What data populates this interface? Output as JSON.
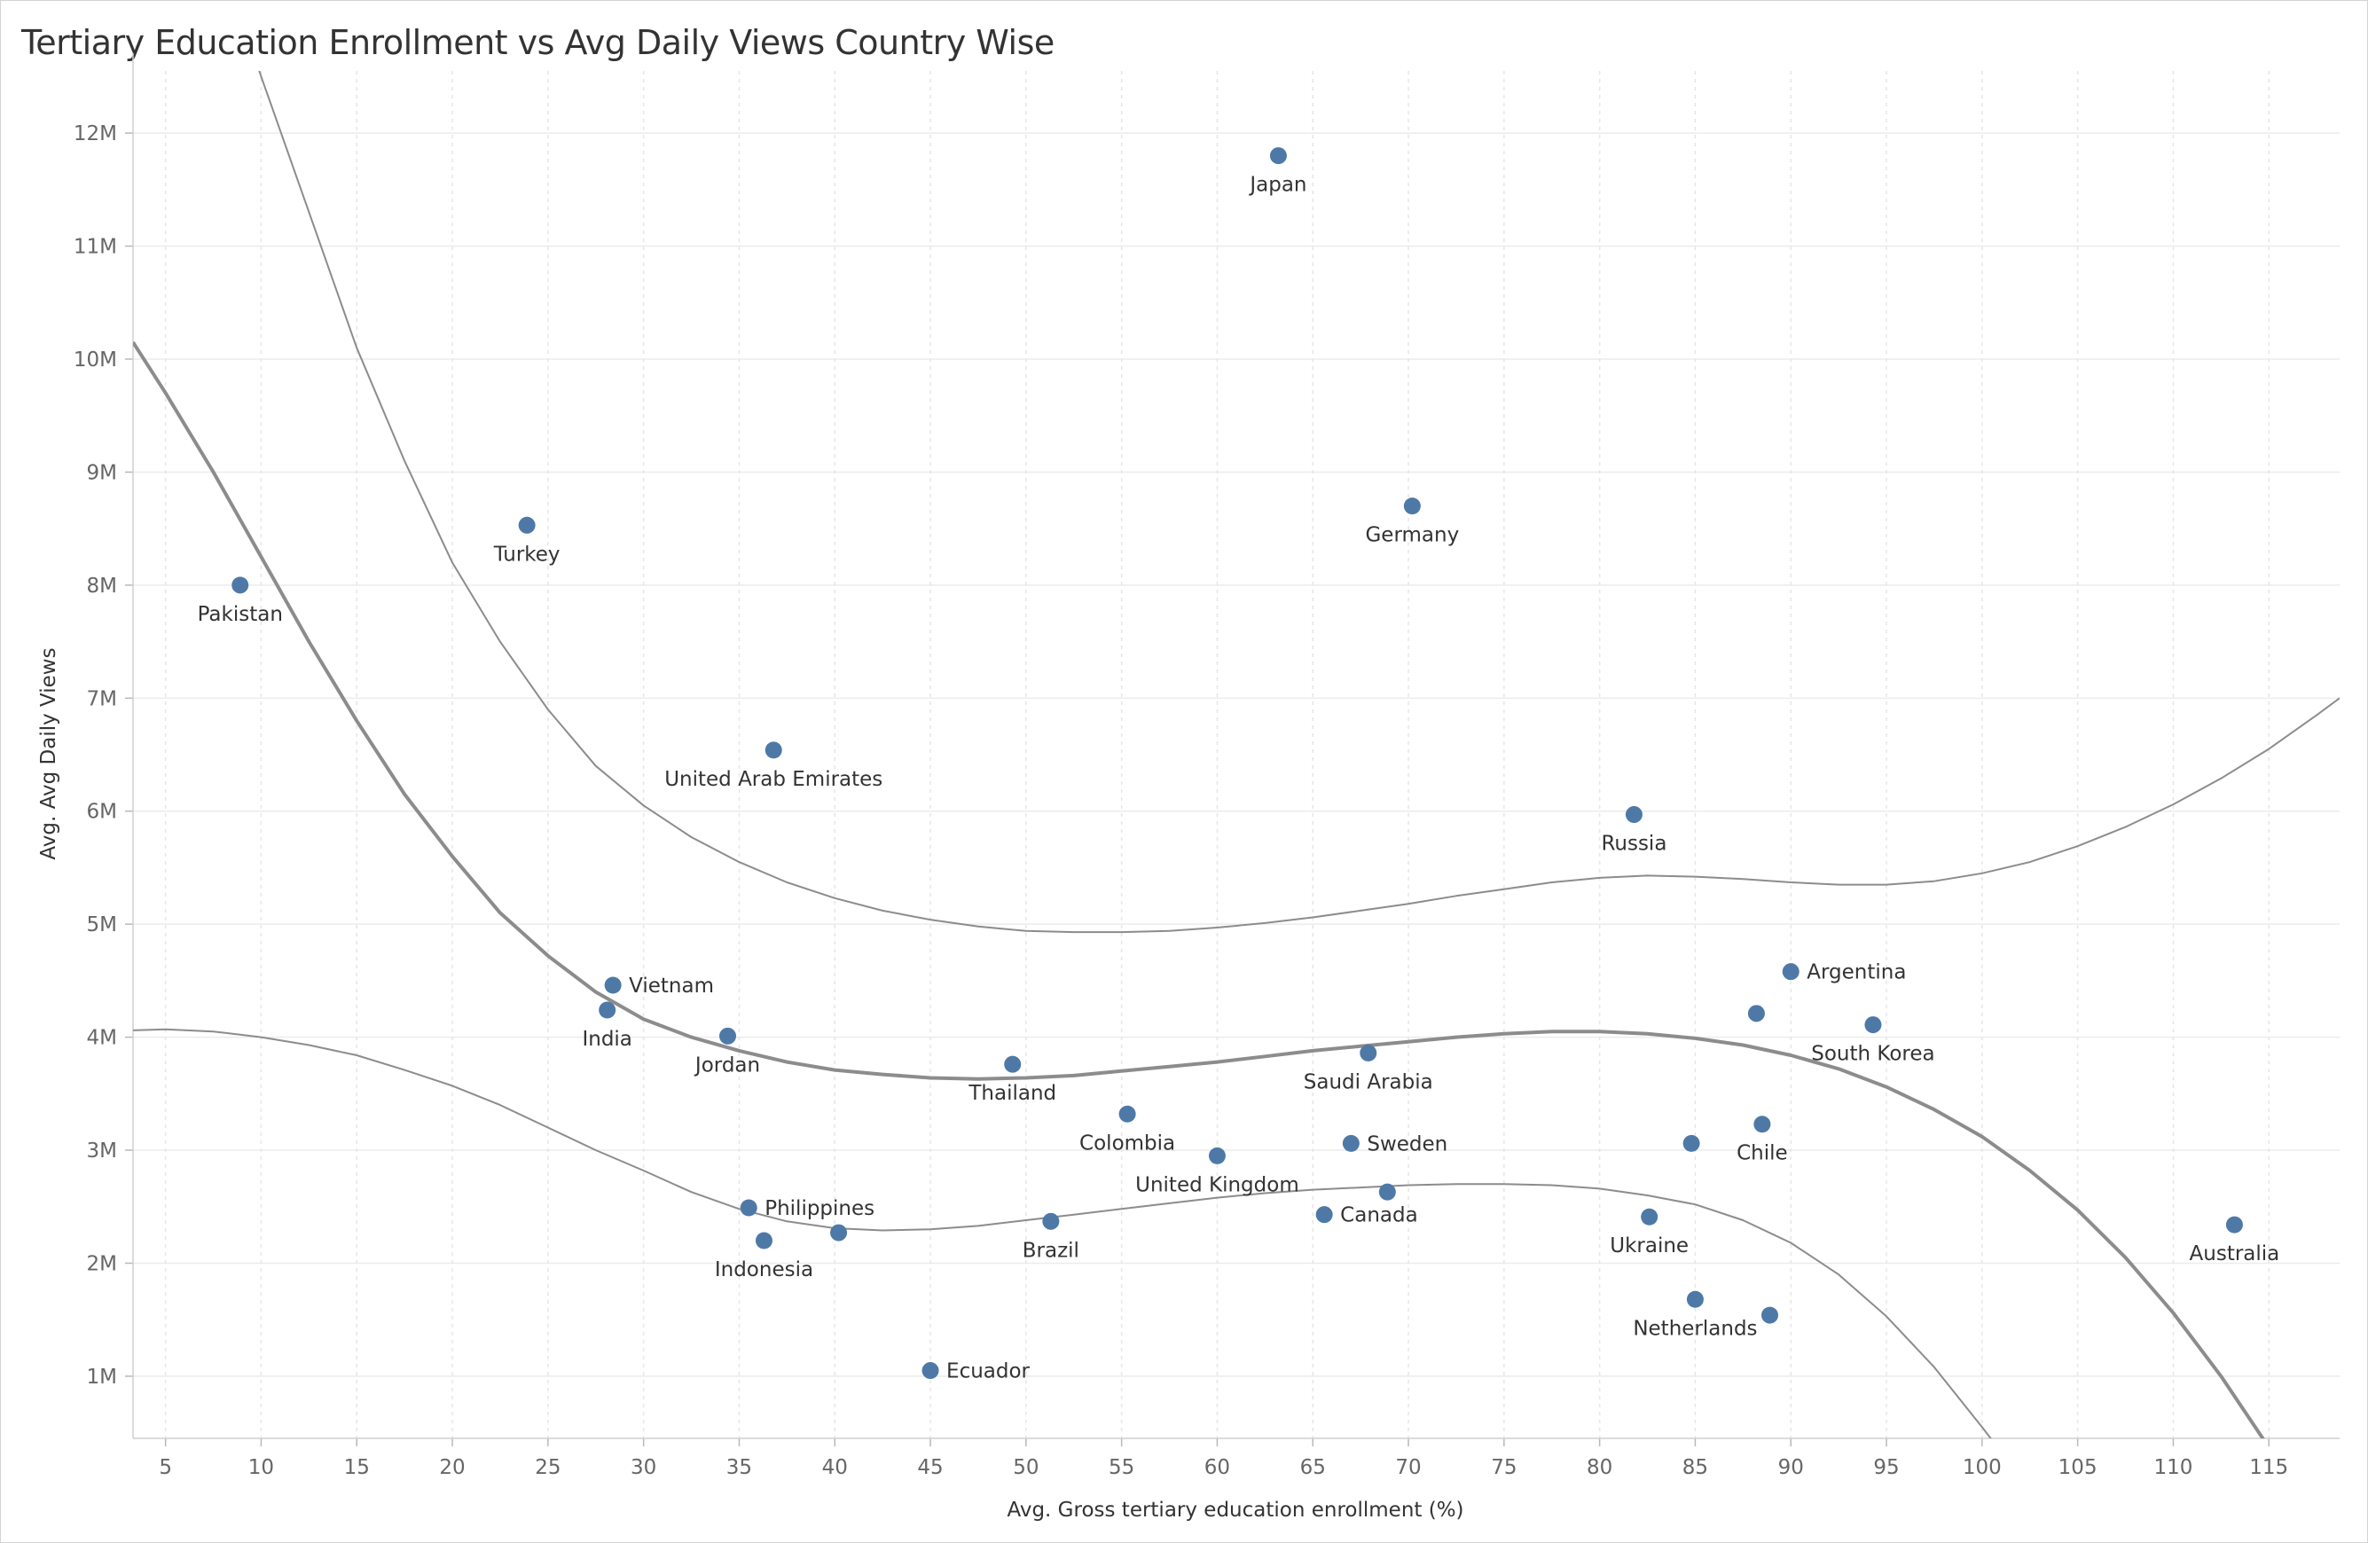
{
  "chart_data": {
    "type": "scatter",
    "title": "Tertiary Education Enrollment vs Avg Daily Views Country Wise",
    "xlabel": "Avg. Gross tertiary education enrollment (%)",
    "ylabel": "Avg. Avg Daily Views",
    "xlim": [
      3.3,
      118.7
    ],
    "ylim": [
      0.45,
      12.55
    ],
    "x_ticks": [
      5,
      10,
      15,
      20,
      25,
      30,
      35,
      40,
      45,
      50,
      55,
      60,
      65,
      70,
      75,
      80,
      85,
      90,
      95,
      100,
      105,
      110,
      115
    ],
    "y_ticks": [
      1,
      2,
      3,
      4,
      5,
      6,
      7,
      8,
      9,
      10,
      11,
      12
    ],
    "y_tick_labels": [
      "1M",
      "2M",
      "3M",
      "4M",
      "5M",
      "6M",
      "7M",
      "8M",
      "9M",
      "10M",
      "11M",
      "12M"
    ],
    "grid": true,
    "point_color": "#4e79a7",
    "curve_color": "#8c8c8c",
    "points": [
      {
        "label": "Japan",
        "x": 63.2,
        "y": 11.8,
        "label_pos": "below"
      },
      {
        "label": "Germany",
        "x": 70.2,
        "y": 8.7,
        "label_pos": "below"
      },
      {
        "label": "Turkey",
        "x": 23.9,
        "y": 8.53,
        "label_pos": "below"
      },
      {
        "label": "Pakistan",
        "x": 8.9,
        "y": 8.0,
        "label_pos": "below"
      },
      {
        "label": "United Arab Emirates",
        "x": 36.8,
        "y": 6.54,
        "label_pos": "below"
      },
      {
        "label": "Russia",
        "x": 81.8,
        "y": 5.97,
        "label_pos": "below"
      },
      {
        "label": "Argentina",
        "x": 90.0,
        "y": 4.58,
        "label_pos": "right"
      },
      {
        "label": "Vietnam",
        "x": 28.4,
        "y": 4.46,
        "label_pos": "right"
      },
      {
        "label": "India",
        "x": 28.1,
        "y": 4.24,
        "label_pos": "below"
      },
      {
        "label": "",
        "x": 88.2,
        "y": 4.21,
        "label_pos": "none"
      },
      {
        "label": "South Korea",
        "x": 94.3,
        "y": 4.11,
        "label_pos": "below"
      },
      {
        "label": "Jordan",
        "x": 34.4,
        "y": 4.01,
        "label_pos": "below"
      },
      {
        "label": "Saudi Arabia",
        "x": 67.9,
        "y": 3.86,
        "label_pos": "below"
      },
      {
        "label": "Thailand",
        "x": 49.3,
        "y": 3.76,
        "label_pos": "below"
      },
      {
        "label": "Colombia",
        "x": 55.3,
        "y": 3.32,
        "label_pos": "below"
      },
      {
        "label": "Chile",
        "x": 88.5,
        "y": 3.23,
        "label_pos": "below"
      },
      {
        "label": "Sweden",
        "x": 67.0,
        "y": 3.06,
        "label_pos": "right"
      },
      {
        "label": "",
        "x": 84.8,
        "y": 3.06,
        "label_pos": "none"
      },
      {
        "label": "United Kingdom",
        "x": 60.0,
        "y": 2.95,
        "label_pos": "below"
      },
      {
        "label": "",
        "x": 68.9,
        "y": 2.63,
        "label_pos": "none"
      },
      {
        "label": "Philippines",
        "x": 35.5,
        "y": 2.49,
        "label_pos": "right"
      },
      {
        "label": "Canada",
        "x": 65.6,
        "y": 2.43,
        "label_pos": "right"
      },
      {
        "label": "Ukraine",
        "x": 82.6,
        "y": 2.41,
        "label_pos": "below"
      },
      {
        "label": "Brazil",
        "x": 51.3,
        "y": 2.37,
        "label_pos": "below"
      },
      {
        "label": "Australia",
        "x": 113.2,
        "y": 2.34,
        "label_pos": "below"
      },
      {
        "label": "",
        "x": 40.2,
        "y": 2.27,
        "label_pos": "none"
      },
      {
        "label": "Indonesia",
        "x": 36.3,
        "y": 2.2,
        "label_pos": "below"
      },
      {
        "label": "Netherlands",
        "x": 85.0,
        "y": 1.68,
        "label_pos": "below"
      },
      {
        "label": "",
        "x": 88.9,
        "y": 1.54,
        "label_pos": "none"
      },
      {
        "label": "Ecuador",
        "x": 45.0,
        "y": 1.05,
        "label_pos": "right"
      }
    ],
    "trend_lines": [
      {
        "name": "",
        "stroke": 4,
        "points": [
          [
            3.3,
            10.15
          ],
          [
            5,
            9.7
          ],
          [
            7.5,
            9.0
          ],
          [
            10,
            8.25
          ],
          [
            12.5,
            7.5
          ],
          [
            15,
            6.8
          ],
          [
            17.5,
            6.15
          ],
          [
            20,
            5.6
          ],
          [
            22.5,
            5.1
          ],
          [
            25,
            4.72
          ],
          [
            27.5,
            4.4
          ],
          [
            30,
            4.16
          ],
          [
            32.5,
            4.0
          ],
          [
            35,
            3.88
          ],
          [
            37.5,
            3.78
          ],
          [
            40,
            3.71
          ],
          [
            42.5,
            3.67
          ],
          [
            45,
            3.64
          ],
          [
            47.5,
            3.63
          ],
          [
            50,
            3.64
          ],
          [
            52.5,
            3.66
          ],
          [
            55,
            3.7
          ],
          [
            57.5,
            3.74
          ],
          [
            60,
            3.78
          ],
          [
            62.5,
            3.83
          ],
          [
            65,
            3.88
          ],
          [
            67.5,
            3.92
          ],
          [
            70,
            3.96
          ],
          [
            72.5,
            4.0
          ],
          [
            75,
            4.03
          ],
          [
            77.5,
            4.05
          ],
          [
            80,
            4.05
          ],
          [
            82.5,
            4.03
          ],
          [
            85,
            3.99
          ],
          [
            87.5,
            3.93
          ],
          [
            90,
            3.84
          ],
          [
            92.5,
            3.72
          ],
          [
            95,
            3.56
          ],
          [
            97.5,
            3.36
          ],
          [
            100,
            3.12
          ],
          [
            102.5,
            2.82
          ],
          [
            105,
            2.47
          ],
          [
            107.5,
            2.05
          ],
          [
            110,
            1.56
          ],
          [
            112.5,
            1.0
          ],
          [
            115,
            0.37
          ],
          [
            116.5,
            -0.05
          ]
        ]
      },
      {
        "name": "",
        "stroke": 2,
        "points": [
          [
            9,
            13.0
          ],
          [
            10,
            12.5
          ],
          [
            12.5,
            11.3
          ],
          [
            15,
            10.1
          ],
          [
            17.5,
            9.1
          ],
          [
            20,
            8.2
          ],
          [
            22.5,
            7.5
          ],
          [
            25,
            6.9
          ],
          [
            27.5,
            6.4
          ],
          [
            30,
            6.05
          ],
          [
            32.5,
            5.77
          ],
          [
            35,
            5.55
          ],
          [
            37.5,
            5.37
          ],
          [
            40,
            5.23
          ],
          [
            42.5,
            5.12
          ],
          [
            45,
            5.04
          ],
          [
            47.5,
            4.98
          ],
          [
            50,
            4.94
          ],
          [
            52.5,
            4.93
          ],
          [
            55,
            4.93
          ],
          [
            57.5,
            4.94
          ],
          [
            60,
            4.97
          ],
          [
            62.5,
            5.01
          ],
          [
            65,
            5.06
          ],
          [
            67.5,
            5.12
          ],
          [
            70,
            5.18
          ],
          [
            72.5,
            5.25
          ],
          [
            75,
            5.31
          ],
          [
            77.5,
            5.37
          ],
          [
            80,
            5.41
          ],
          [
            82.5,
            5.43
          ],
          [
            85,
            5.42
          ],
          [
            87.5,
            5.4
          ],
          [
            90,
            5.37
          ],
          [
            92.5,
            5.35
          ],
          [
            95,
            5.35
          ],
          [
            97.5,
            5.38
          ],
          [
            100,
            5.45
          ],
          [
            102.5,
            5.55
          ],
          [
            105,
            5.69
          ],
          [
            107.5,
            5.86
          ],
          [
            110,
            6.06
          ],
          [
            112.5,
            6.29
          ],
          [
            115,
            6.55
          ],
          [
            117.5,
            6.85
          ],
          [
            118.7,
            7.0
          ]
        ]
      },
      {
        "name": "",
        "stroke": 2,
        "points": [
          [
            3.3,
            4.06
          ],
          [
            5,
            4.07
          ],
          [
            7.5,
            4.05
          ],
          [
            10,
            4.0
          ],
          [
            12.5,
            3.93
          ],
          [
            15,
            3.84
          ],
          [
            17.5,
            3.71
          ],
          [
            20,
            3.57
          ],
          [
            22.5,
            3.4
          ],
          [
            25,
            3.2
          ],
          [
            27.5,
            3.0
          ],
          [
            30,
            2.82
          ],
          [
            32.5,
            2.63
          ],
          [
            35,
            2.48
          ],
          [
            37.5,
            2.37
          ],
          [
            40,
            2.31
          ],
          [
            42.5,
            2.29
          ],
          [
            45,
            2.3
          ],
          [
            47.5,
            2.33
          ],
          [
            50,
            2.38
          ],
          [
            52.5,
            2.43
          ],
          [
            55,
            2.48
          ],
          [
            57.5,
            2.53
          ],
          [
            60,
            2.58
          ],
          [
            62.5,
            2.62
          ],
          [
            65,
            2.65
          ],
          [
            67.5,
            2.67
          ],
          [
            70,
            2.69
          ],
          [
            72.5,
            2.7
          ],
          [
            75,
            2.7
          ],
          [
            77.5,
            2.69
          ],
          [
            80,
            2.66
          ],
          [
            82.5,
            2.6
          ],
          [
            85,
            2.52
          ],
          [
            87.5,
            2.38
          ],
          [
            90,
            2.18
          ],
          [
            92.5,
            1.9
          ],
          [
            95,
            1.53
          ],
          [
            97.5,
            1.08
          ],
          [
            100,
            0.55
          ],
          [
            102.5,
            0.0
          ],
          [
            104,
            -0.3
          ]
        ]
      }
    ]
  }
}
